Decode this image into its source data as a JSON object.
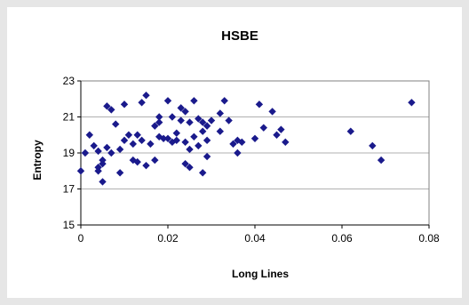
{
  "chart_data": {
    "type": "scatter",
    "title": "HSBE",
    "xlabel": "Long Lines",
    "ylabel": "Entropy",
    "xlim": [
      0,
      0.08
    ],
    "ylim": [
      15,
      23
    ],
    "xticks": [
      "0",
      "0.02",
      "0.04",
      "0.06",
      "0.08"
    ],
    "yticks": [
      "15",
      "17",
      "19",
      "21",
      "23"
    ],
    "grid": "horizontal",
    "legend": "none",
    "marker_color": "#1a1a8c",
    "series": [
      {
        "points": [
          [
            0.0,
            18.0
          ],
          [
            0.001,
            19.0
          ],
          [
            0.002,
            20.0
          ],
          [
            0.003,
            19.4
          ],
          [
            0.004,
            19.1
          ],
          [
            0.004,
            18.2
          ],
          [
            0.004,
            18.0
          ],
          [
            0.005,
            18.6
          ],
          [
            0.005,
            17.4
          ],
          [
            0.005,
            18.4
          ],
          [
            0.006,
            19.3
          ],
          [
            0.006,
            21.6
          ],
          [
            0.007,
            21.4
          ],
          [
            0.007,
            19.0
          ],
          [
            0.008,
            20.6
          ],
          [
            0.009,
            19.2
          ],
          [
            0.009,
            17.9
          ],
          [
            0.01,
            19.7
          ],
          [
            0.01,
            21.7
          ],
          [
            0.011,
            20.0
          ],
          [
            0.012,
            18.6
          ],
          [
            0.012,
            19.5
          ],
          [
            0.013,
            18.5
          ],
          [
            0.013,
            20.0
          ],
          [
            0.014,
            21.8
          ],
          [
            0.014,
            19.7
          ],
          [
            0.015,
            22.2
          ],
          [
            0.015,
            18.3
          ],
          [
            0.016,
            19.5
          ],
          [
            0.017,
            20.5
          ],
          [
            0.017,
            18.6
          ],
          [
            0.018,
            21.0
          ],
          [
            0.018,
            20.7
          ],
          [
            0.018,
            19.9
          ],
          [
            0.019,
            19.8
          ],
          [
            0.02,
            19.8
          ],
          [
            0.02,
            21.9
          ],
          [
            0.021,
            19.6
          ],
          [
            0.021,
            21.0
          ],
          [
            0.022,
            19.7
          ],
          [
            0.022,
            20.1
          ],
          [
            0.023,
            21.5
          ],
          [
            0.023,
            20.8
          ],
          [
            0.024,
            21.3
          ],
          [
            0.024,
            19.6
          ],
          [
            0.024,
            18.4
          ],
          [
            0.025,
            18.2
          ],
          [
            0.025,
            20.7
          ],
          [
            0.025,
            19.2
          ],
          [
            0.026,
            21.9
          ],
          [
            0.026,
            19.9
          ],
          [
            0.027,
            20.9
          ],
          [
            0.027,
            19.4
          ],
          [
            0.028,
            20.7
          ],
          [
            0.028,
            17.9
          ],
          [
            0.028,
            20.2
          ],
          [
            0.029,
            19.7
          ],
          [
            0.029,
            20.5
          ],
          [
            0.029,
            18.8
          ],
          [
            0.03,
            20.8
          ],
          [
            0.032,
            21.2
          ],
          [
            0.032,
            20.2
          ],
          [
            0.033,
            21.9
          ],
          [
            0.034,
            20.8
          ],
          [
            0.035,
            19.5
          ],
          [
            0.036,
            19.7
          ],
          [
            0.036,
            19.0
          ],
          [
            0.037,
            19.6
          ],
          [
            0.04,
            19.8
          ],
          [
            0.041,
            21.7
          ],
          [
            0.042,
            20.4
          ],
          [
            0.044,
            21.3
          ],
          [
            0.045,
            20.0
          ],
          [
            0.046,
            20.3
          ],
          [
            0.047,
            19.6
          ],
          [
            0.062,
            20.2
          ],
          [
            0.067,
            19.4
          ],
          [
            0.069,
            18.6
          ],
          [
            0.076,
            21.8
          ]
        ]
      }
    ]
  }
}
